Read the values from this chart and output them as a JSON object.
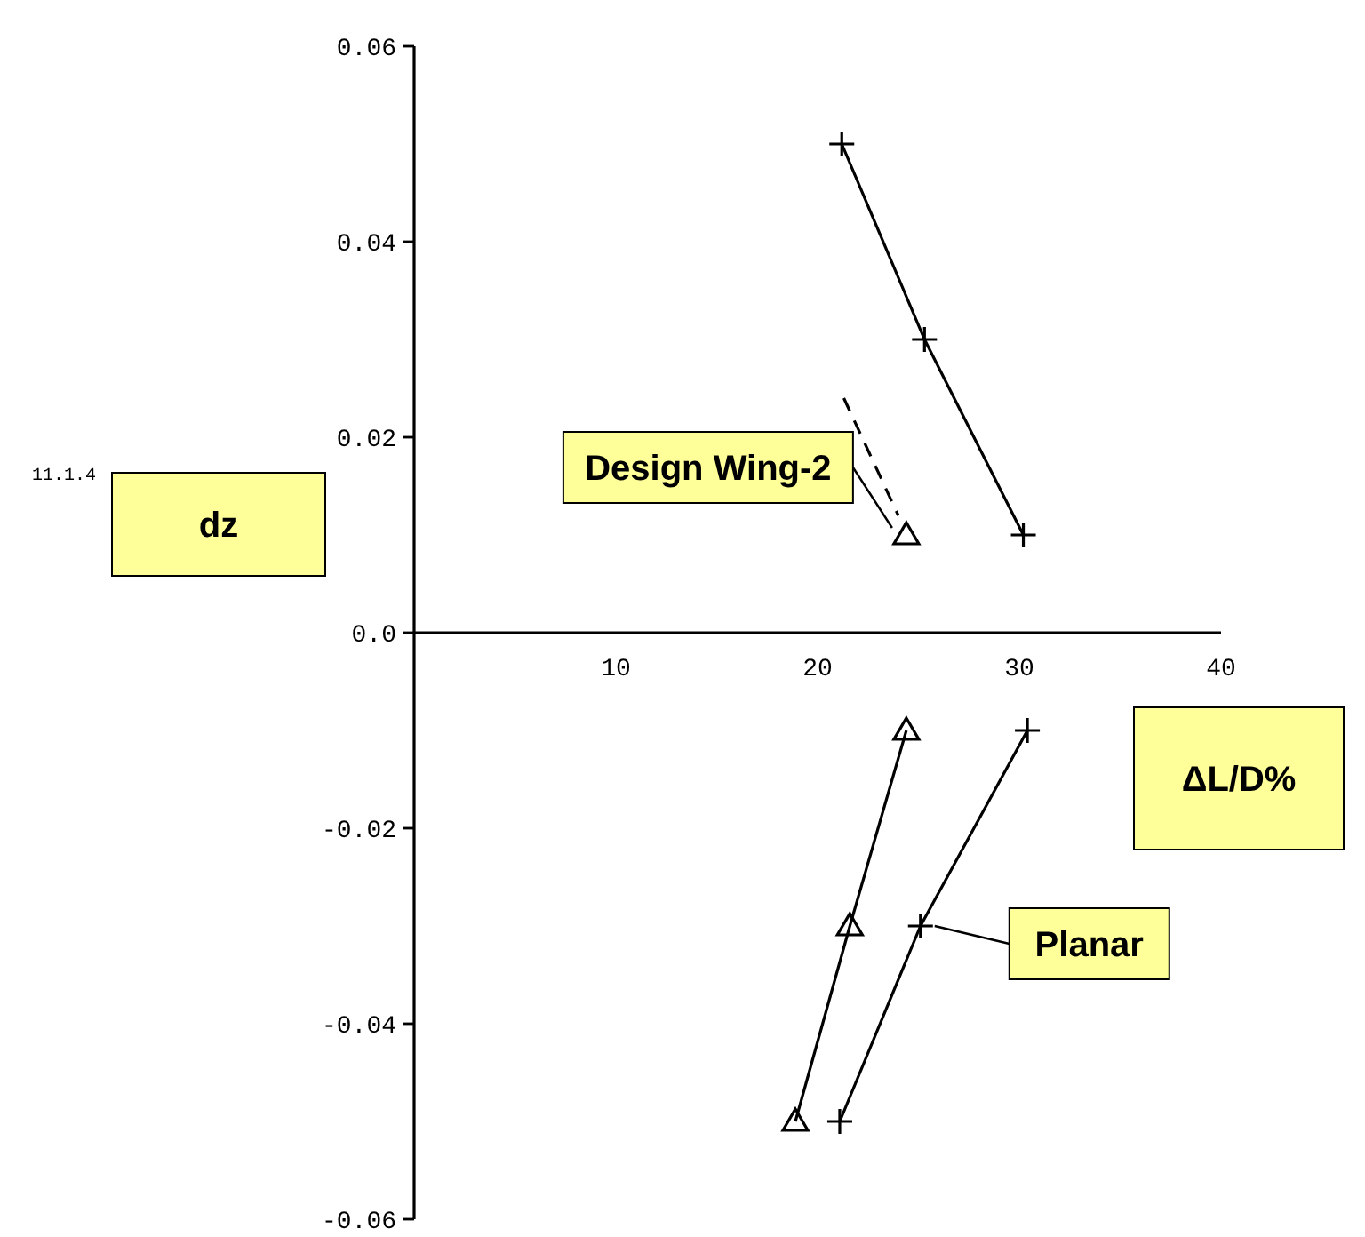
{
  "chart_data": {
    "type": "line",
    "xlabel": "ΔL/D%",
    "ylabel": "dz",
    "xlim": [
      0,
      40
    ],
    "ylim": [
      -0.06,
      0.06
    ],
    "xticks": [
      10,
      20,
      30,
      40
    ],
    "yticks": [
      -0.06,
      -0.04,
      -0.02,
      {
        "value": 0,
        "label": "0.0"
      },
      0.02,
      0.04,
      0.06
    ],
    "legend": "right",
    "grid": false,
    "annotations": [
      "11.1.4"
    ],
    "series": [
      {
        "color": "#000000",
        "marker": "cross",
        "x": [
          21.2,
          25.3,
          30.2
        ],
        "values": [
          0.05,
          0.03,
          0.01
        ]
      },
      {
        "name": "Planar",
        "color": "#000000",
        "marker": "cross",
        "x": [
          21.1,
          25.1,
          30.4
        ],
        "values": [
          -0.05,
          -0.03,
          -0.01
        ]
      },
      {
        "name": "Design Wing-2",
        "color": "#000000",
        "marker": "triangle",
        "x": [
          24.4
        ],
        "values": [
          0.01
        ]
      },
      {
        "color": "#000000",
        "marker": "none",
        "line_style": "dashed",
        "x": [
          21.3,
          24.0
        ],
        "values": [
          0.024,
          0.012
        ]
      },
      {
        "color": "#000000",
        "marker": "triangle",
        "x": [
          18.9,
          21.6,
          24.4
        ],
        "values": [
          -0.05,
          -0.03,
          -0.01
        ]
      }
    ]
  }
}
